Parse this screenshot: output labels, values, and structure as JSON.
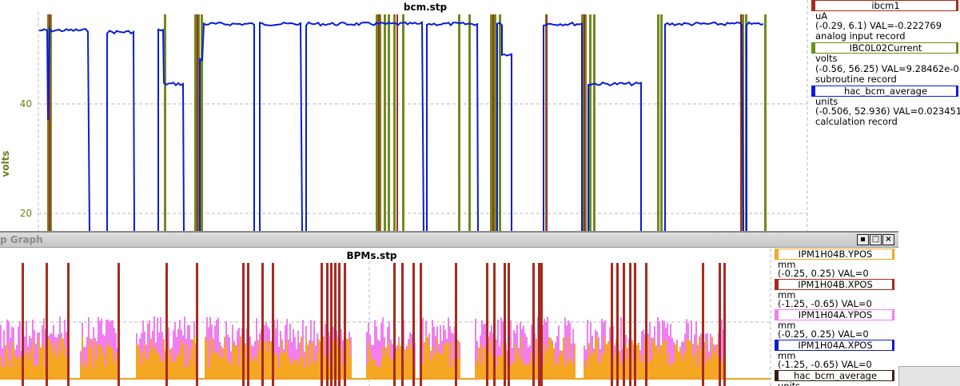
{
  "plot_top": {
    "title": "bcm.stp",
    "ylabel": "volts",
    "yticks": [
      "40",
      "20"
    ],
    "colors": {
      "grid": "#b8b8b8",
      "axis_text": "#6b7d1e",
      "blue": "#0a1cd6",
      "olive": "#6f8a1f",
      "darkred": "#a82a1e"
    },
    "legend": [
      {
        "name": "ibcm1",
        "color": "#a82a1e",
        "units": "uA",
        "range": "(-0.29, 6.1) VAL=-0.222769",
        "record": "analog input record"
      },
      {
        "name": "IBC0L02Current",
        "color": "#6f8a1f",
        "units": "volts",
        "range": "(-0.56, 56.25) VAL=9.28462e-0",
        "record": "subroutine record"
      },
      {
        "name": "hac_bcm_average",
        "color": "#0a1cd6",
        "units": "units",
        "range": "(-0.506, 52.936) VAL=0.023451",
        "record": "calculation record"
      }
    ]
  },
  "plot_bottom": {
    "window_title": "p Graph",
    "title": "BPMs.stp",
    "buttons": {
      "minimize": "▪",
      "maximize": "□",
      "close": "×"
    },
    "colors": {
      "grid": "#b8b8b8",
      "orange": "#f5a623",
      "pink": "#f07ef0",
      "darkred": "#a82a1e",
      "baseline": "#f0a020"
    },
    "legend": [
      {
        "name": "IPM1H04B.YPOS",
        "color": "#f5a623",
        "units": "mm",
        "range": "(-0.25, 0.25) VAL=0"
      },
      {
        "name": "IPM1H04B.XPOS",
        "color": "#a82a1e",
        "units": "mm",
        "range": "(-1.25, -0.65) VAL=0"
      },
      {
        "name": "IPM1H04A.YPOS",
        "color": "#f07ef0",
        "units": "mm",
        "range": "(-0.25, 0.25) VAL=0"
      },
      {
        "name": "IPM1H04A.XPOS",
        "color": "#0a1cd6",
        "units": "mm",
        "range": "(-1.25, -0.65) VAL=0"
      },
      {
        "name": "hac_bcm_average",
        "color": "#3a1f0e",
        "units": "units",
        "range": ""
      }
    ]
  }
}
